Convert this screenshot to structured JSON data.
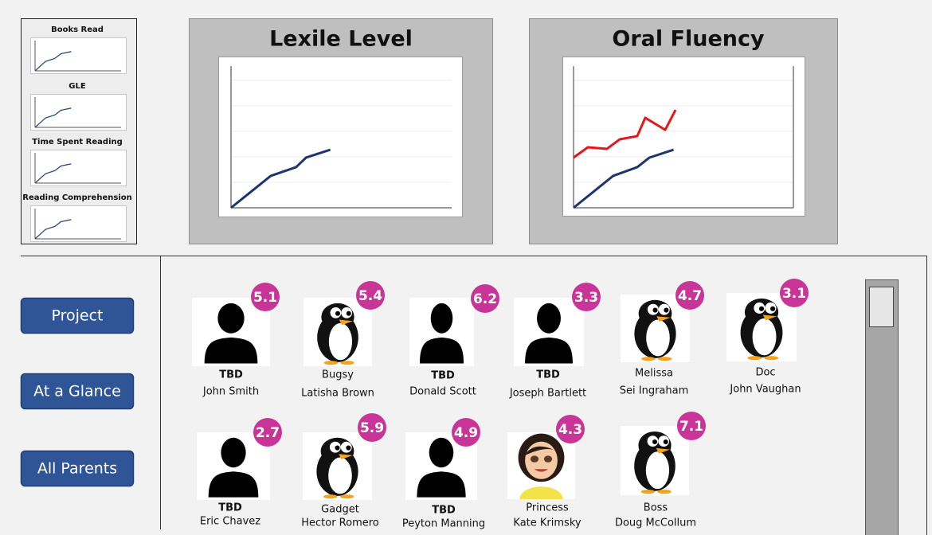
{
  "thumbnails": [
    {
      "title": "Books Read",
      "type": "line",
      "xlim": [
        0,
        10
      ],
      "ylim": [
        0,
        100
      ],
      "x": [
        0,
        1.2,
        2.3,
        3,
        4.2
      ],
      "values": [
        0,
        30,
        40,
        55,
        62
      ]
    },
    {
      "title": "GLE",
      "type": "line",
      "xlim": [
        0,
        10
      ],
      "ylim": [
        0,
        100
      ],
      "x": [
        0,
        1.2,
        2.3,
        3,
        4.2
      ],
      "values": [
        0,
        30,
        40,
        55,
        62
      ]
    },
    {
      "title": "Time Spent Reading",
      "type": "line",
      "xlim": [
        0,
        10
      ],
      "ylim": [
        0,
        100
      ],
      "x": [
        0,
        1.2,
        2.3,
        3,
        4.2
      ],
      "values": [
        0,
        30,
        40,
        55,
        62
      ]
    },
    {
      "title": "Reading Comprehension",
      "type": "line",
      "xlim": [
        0,
        10
      ],
      "ylim": [
        0,
        100
      ],
      "x": [
        0,
        1.2,
        2.3,
        3,
        4.2
      ],
      "values": [
        0,
        30,
        40,
        55,
        62
      ]
    }
  ],
  "charts": [
    {
      "type": "line",
      "title": "Lexile Level",
      "xlim": [
        0,
        10
      ],
      "ylim": [
        0,
        100
      ],
      "yticks": [
        0,
        18,
        36,
        54,
        72,
        90
      ],
      "grid": true,
      "series": [
        {
          "color": "#1f3571",
          "x": [
            0,
            1.8,
            2.95,
            3.4,
            4.5
          ],
          "values": [
            0,
            22.5,
            28.7,
            35.4,
            41
          ]
        }
      ]
    },
    {
      "type": "line",
      "title": "Oral Fluency",
      "xlim": [
        0,
        10
      ],
      "ylim": [
        0,
        100
      ],
      "yticks": [
        0,
        18,
        36,
        54,
        72,
        90
      ],
      "grid": true,
      "series": [
        {
          "color": "#1f3571",
          "x": [
            0,
            1.8,
            2.9,
            3.45,
            4.55
          ],
          "values": [
            0,
            22.5,
            28.7,
            35.4,
            41
          ]
        },
        {
          "color": "#e8161b",
          "x": [
            0,
            0.65,
            1.52,
            2.1,
            2.9,
            3.26,
            4.17,
            4.64
          ],
          "values": [
            35.4,
            42.7,
            41.6,
            48.3,
            50.6,
            63.5,
            55,
            69.1
          ]
        }
      ]
    }
  ],
  "buttons": [
    "Project",
    "At a Glance",
    "All Parents"
  ],
  "students": [
    {
      "avatar": "silhouette",
      "score": 5.1,
      "nickname": "TBD",
      "nickname_bold": true,
      "name": "John Smith"
    },
    {
      "avatar": "penguin",
      "score": 5.4,
      "nickname": "Bugsy",
      "nickname_bold": false,
      "name": "Latisha Brown"
    },
    {
      "avatar": "silhouette",
      "score": 6.2,
      "nickname": "TBD",
      "nickname_bold": true,
      "name": "Donald Scott"
    },
    {
      "avatar": "silhouette",
      "score": 3.3,
      "nickname": "TBD",
      "nickname_bold": true,
      "name": "Joseph Bartlett"
    },
    {
      "avatar": "penguin",
      "score": 4.7,
      "nickname": "Melissa",
      "nickname_bold": false,
      "name": "Sei Ingraham"
    },
    {
      "avatar": "penguin",
      "score": 3.1,
      "nickname": "Doc",
      "nickname_bold": false,
      "name": "John Vaughan"
    },
    {
      "avatar": "silhouette",
      "score": 2.7,
      "nickname": "TBD",
      "nickname_bold": true,
      "name": "Eric Chavez"
    },
    {
      "avatar": "penguin",
      "score": 5.9,
      "nickname": "Gadget",
      "nickname_bold": false,
      "name": "Hector Romero"
    },
    {
      "avatar": "silhouette",
      "score": 4.9,
      "nickname": "TBD",
      "nickname_bold": true,
      "name": "Peyton Manning"
    },
    {
      "avatar": "girl",
      "score": 4.3,
      "nickname": "Princess",
      "nickname_bold": false,
      "name": "Kate Krimsky"
    },
    {
      "avatar": "penguin",
      "score": 7.1,
      "nickname": "Boss",
      "nickname_bold": false,
      "name": "Doug McCollum"
    }
  ]
}
